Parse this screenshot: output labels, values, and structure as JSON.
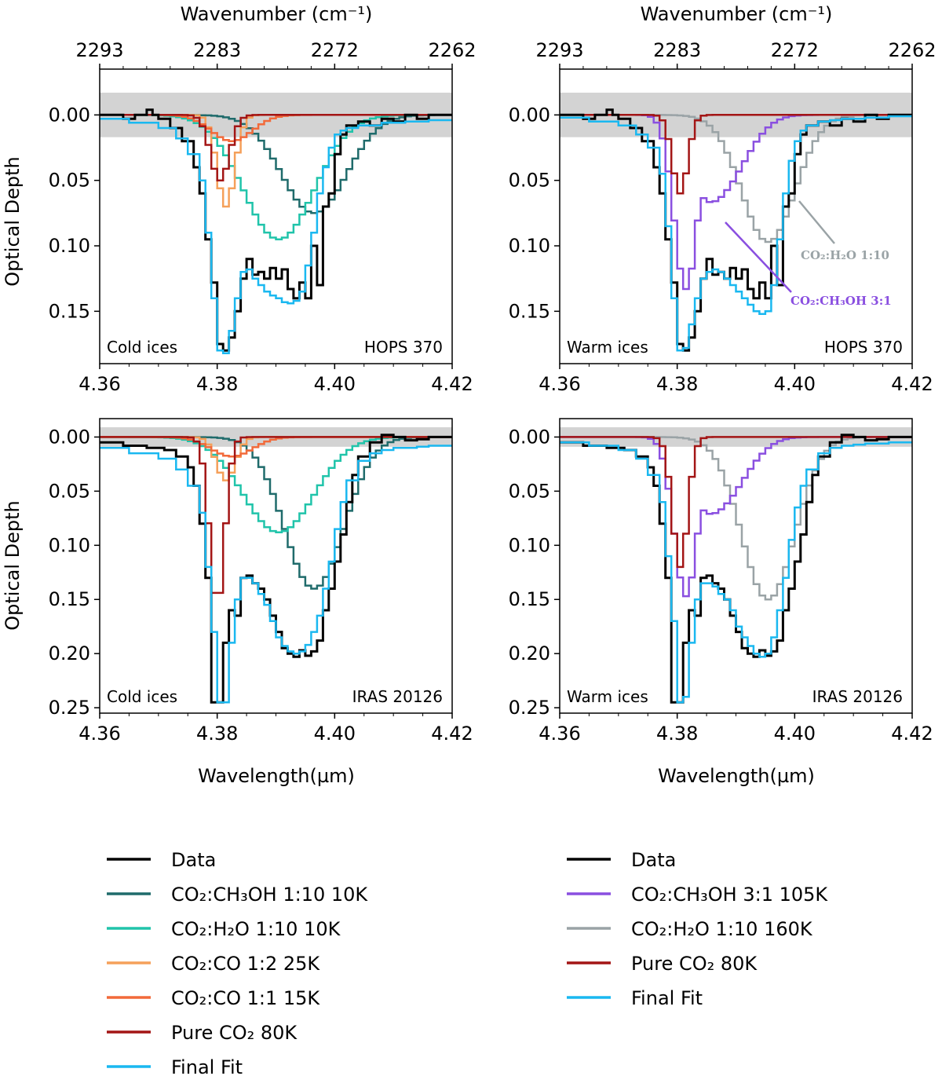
{
  "figure": {
    "top_axis_label": "Wavenumber (cm⁻¹)",
    "y_axis_label": "Optical Depth",
    "x_axis_label": "Wavelength(µm)",
    "top_ticks": [
      "2293",
      "2283",
      "2272",
      "2262"
    ]
  },
  "colors": {
    "data": "#000000",
    "co2_ch3oh_1_10": "#1f6b6b",
    "co2_h2o_1_10_10k": "#20c4aa",
    "co2_co_1_2": "#f5a05a",
    "co2_co_1_1": "#f26a3a",
    "pure_co2": "#a31515",
    "final_fit": "#1ab8f0",
    "co2_ch3oh_3_1": "#8a4fe0",
    "co2_h2o_1_10_160k": "#9aa3a6",
    "noise_band": "#d3d3d3"
  },
  "legend_left": [
    {
      "key": "data",
      "label": "Data"
    },
    {
      "key": "co2_ch3oh_1_10",
      "label": "CO₂:CH₃OH 1:10 10K"
    },
    {
      "key": "co2_h2o_1_10_10k",
      "label": "CO₂:H₂O 1:10 10K"
    },
    {
      "key": "co2_co_1_2",
      "label": "CO₂:CO 1:2 25K"
    },
    {
      "key": "co2_co_1_1",
      "label": "CO₂:CO 1:1 15K"
    },
    {
      "key": "pure_co2",
      "label": "Pure CO₂ 80K"
    },
    {
      "key": "final_fit",
      "label": "Final Fit"
    }
  ],
  "legend_right": [
    {
      "key": "data",
      "label": "Data"
    },
    {
      "key": "co2_ch3oh_3_1",
      "label": "CO₂:CH₃OH 3:1 105K"
    },
    {
      "key": "co2_h2o_1_10_160k",
      "label": "CO₂:H₂O 1:10 160K"
    },
    {
      "key": "pure_co2",
      "label": "Pure CO₂ 80K"
    },
    {
      "key": "final_fit",
      "label": "Final Fit"
    }
  ],
  "annotations": {
    "h2o": "CO₂:H₂O 1:10",
    "ch3oh": "CO₂:CH₃OH 3:1"
  },
  "chart_data": [
    {
      "type": "line",
      "id": "p1",
      "ice_label": "Cold ices",
      "source_label": "HOPS 370",
      "xlim": [
        4.36,
        4.42
      ],
      "ylim": [
        0.19,
        -0.035
      ],
      "xticks": [
        4.36,
        4.38,
        4.4,
        4.42
      ],
      "yticks": [
        0.0,
        0.05,
        0.1,
        0.15
      ],
      "ytick_labels": [
        "0.00",
        "0.05",
        "0.10",
        "0.15"
      ],
      "noise_band": [
        -0.017,
        0.017
      ],
      "data": {
        "x": [
          4.36,
          4.364,
          4.366,
          4.368,
          4.369,
          4.37,
          4.372,
          4.374,
          4.376,
          4.377,
          4.378,
          4.379,
          4.38,
          4.381,
          4.382,
          4.383,
          4.384,
          4.385,
          4.386,
          4.387,
          4.388,
          4.389,
          4.39,
          4.391,
          4.392,
          4.393,
          4.394,
          4.395,
          4.396,
          4.397,
          4.398,
          4.399,
          4.4,
          4.401,
          4.402,
          4.404,
          4.406,
          4.408,
          4.41,
          4.412,
          4.414,
          4.416,
          4.42
        ],
        "y": [
          0.0,
          0.003,
          0.0,
          -0.004,
          0.0,
          0.003,
          0.01,
          0.02,
          0.04,
          0.06,
          0.095,
          0.128,
          0.175,
          0.18,
          0.17,
          0.15,
          0.125,
          0.11,
          0.122,
          0.12,
          0.125,
          0.117,
          0.125,
          0.118,
          0.133,
          0.14,
          0.128,
          0.14,
          0.1,
          0.13,
          0.07,
          0.06,
          0.03,
          0.015,
          0.008,
          0.005,
          0.008,
          0.003,
          0.005,
          0.0,
          0.003,
          0.0,
          0.0
        ]
      },
      "series": [
        {
          "key": "co2_ch3oh_1_10",
          "center": 4.396,
          "depth": 0.075,
          "width": 0.0055
        },
        {
          "key": "co2_h2o_1_10_10k",
          "center": 4.39,
          "depth": 0.095,
          "width": 0.006
        },
        {
          "key": "co2_co_1_2",
          "center": 4.381,
          "depth": 0.07,
          "width": 0.0015
        },
        {
          "key": "co2_co_1_1",
          "center": 4.382,
          "depth": 0.02,
          "width": 0.0035
        },
        {
          "key": "pure_co2",
          "center": 4.38,
          "depth": 0.05,
          "width": 0.0016
        }
      ],
      "fit": {
        "x": [
          4.36,
          4.365,
          4.37,
          4.373,
          4.375,
          4.377,
          4.378,
          4.379,
          4.38,
          4.381,
          4.382,
          4.383,
          4.384,
          4.385,
          4.386,
          4.387,
          4.388,
          4.389,
          4.39,
          4.391,
          4.392,
          4.393,
          4.394,
          4.395,
          4.396,
          4.397,
          4.398,
          4.399,
          4.4,
          4.401,
          4.402,
          4.404,
          4.406,
          4.408,
          4.41,
          4.412,
          4.414,
          4.416,
          4.42
        ],
        "y": [
          0.003,
          0.006,
          0.01,
          0.018,
          0.03,
          0.05,
          0.09,
          0.14,
          0.18,
          0.182,
          0.165,
          0.14,
          0.12,
          0.118,
          0.125,
          0.13,
          0.135,
          0.138,
          0.14,
          0.143,
          0.144,
          0.142,
          0.135,
          0.115,
          0.09,
          0.06,
          0.04,
          0.025,
          0.015,
          0.012,
          0.01,
          0.008,
          0.008,
          0.006,
          0.006,
          0.005,
          0.005,
          0.004,
          0.004
        ]
      }
    },
    {
      "type": "line",
      "id": "p2",
      "ice_label": "Warm ices",
      "source_label": "HOPS 370",
      "xlim": [
        4.36,
        4.42
      ],
      "ylim": [
        0.19,
        -0.035
      ],
      "xticks": [
        4.36,
        4.38,
        4.4,
        4.42
      ],
      "yticks": [
        0.0,
        0.05,
        0.1,
        0.15
      ],
      "ytick_labels": [
        "0.00",
        "0.05",
        "0.10",
        "0.15"
      ],
      "noise_band": [
        -0.017,
        0.017
      ],
      "data": {
        "x": [
          4.36,
          4.364,
          4.366,
          4.368,
          4.369,
          4.37,
          4.372,
          4.374,
          4.376,
          4.377,
          4.378,
          4.379,
          4.38,
          4.381,
          4.382,
          4.383,
          4.384,
          4.385,
          4.386,
          4.387,
          4.388,
          4.389,
          4.39,
          4.391,
          4.392,
          4.393,
          4.394,
          4.395,
          4.396,
          4.397,
          4.398,
          4.399,
          4.4,
          4.401,
          4.402,
          4.404,
          4.406,
          4.408,
          4.41,
          4.412,
          4.414,
          4.416,
          4.42
        ],
        "y": [
          0.0,
          0.003,
          0.0,
          -0.004,
          0.0,
          0.003,
          0.01,
          0.02,
          0.04,
          0.06,
          0.095,
          0.128,
          0.175,
          0.18,
          0.17,
          0.15,
          0.125,
          0.11,
          0.122,
          0.12,
          0.125,
          0.117,
          0.125,
          0.118,
          0.133,
          0.14,
          0.128,
          0.14,
          0.1,
          0.13,
          0.07,
          0.06,
          0.03,
          0.015,
          0.008,
          0.005,
          0.008,
          0.003,
          0.005,
          0.0,
          0.003,
          0.0,
          0.0
        ]
      },
      "series": [
        {
          "key": "co2_h2o_1_10_160k",
          "center": 4.395,
          "depth": 0.097,
          "width": 0.0045
        },
        {
          "key": "co2_ch3oh_3_1",
          "center": 4.381,
          "depth": 0.133,
          "width": 0.002,
          "tail": 0.075,
          "tail_width": 0.011
        },
        {
          "key": "pure_co2",
          "center": 4.38,
          "depth": 0.06,
          "width": 0.0013
        }
      ],
      "fit": {
        "x": [
          4.36,
          4.365,
          4.37,
          4.373,
          4.375,
          4.377,
          4.378,
          4.379,
          4.38,
          4.381,
          4.382,
          4.383,
          4.384,
          4.385,
          4.386,
          4.387,
          4.388,
          4.389,
          4.39,
          4.391,
          4.392,
          4.393,
          4.394,
          4.395,
          4.396,
          4.397,
          4.398,
          4.399,
          4.4,
          4.401,
          4.402,
          4.404,
          4.406,
          4.408,
          4.41,
          4.412,
          4.414,
          4.416,
          4.42
        ],
        "y": [
          0.002,
          0.005,
          0.008,
          0.015,
          0.025,
          0.045,
          0.085,
          0.14,
          0.18,
          0.178,
          0.16,
          0.14,
          0.125,
          0.12,
          0.118,
          0.12,
          0.125,
          0.13,
          0.135,
          0.14,
          0.145,
          0.15,
          0.152,
          0.15,
          0.13,
          0.095,
          0.06,
          0.035,
          0.02,
          0.012,
          0.008,
          0.005,
          0.004,
          0.003,
          0.003,
          0.002,
          0.002,
          0.001,
          0.0
        ]
      }
    },
    {
      "type": "line",
      "id": "p3",
      "ice_label": "Cold ices",
      "source_label": "IRAS 20126",
      "xlim": [
        4.36,
        4.42
      ],
      "ylim": [
        0.255,
        -0.017
      ],
      "xticks": [
        4.36,
        4.38,
        4.4,
        4.42
      ],
      "yticks": [
        0.0,
        0.05,
        0.1,
        0.15,
        0.2,
        0.25
      ],
      "ytick_labels": [
        "0.00",
        "0.05",
        "0.10",
        "0.15",
        "0.20",
        "0.25"
      ],
      "noise_band": [
        -0.009,
        0.009
      ],
      "data": {
        "x": [
          4.36,
          4.364,
          4.368,
          4.371,
          4.373,
          4.375,
          4.376,
          4.377,
          4.378,
          4.379,
          4.38,
          4.381,
          4.382,
          4.383,
          4.384,
          4.385,
          4.386,
          4.387,
          4.388,
          4.389,
          4.39,
          4.391,
          4.392,
          4.393,
          4.394,
          4.395,
          4.396,
          4.397,
          4.398,
          4.399,
          4.4,
          4.401,
          4.402,
          4.403,
          4.404,
          4.406,
          4.408,
          4.41,
          4.412,
          4.414,
          4.416,
          4.42
        ],
        "y": [
          0.005,
          0.008,
          0.01,
          0.012,
          0.018,
          0.028,
          0.045,
          0.08,
          0.13,
          0.245,
          0.245,
          0.19,
          0.16,
          0.165,
          0.13,
          0.128,
          0.135,
          0.14,
          0.15,
          0.165,
          0.18,
          0.195,
          0.2,
          0.203,
          0.197,
          0.202,
          0.198,
          0.188,
          0.16,
          0.14,
          0.115,
          0.09,
          0.06,
          0.035,
          0.018,
          0.005,
          -0.002,
          0.0,
          0.003,
          0.002,
          0.0,
          0.0
        ]
      },
      "series": [
        {
          "key": "co2_ch3oh_1_10",
          "center": 4.396,
          "depth": 0.14,
          "width": 0.005
        },
        {
          "key": "co2_h2o_1_10_10k",
          "center": 4.39,
          "depth": 0.088,
          "width": 0.006
        },
        {
          "key": "co2_co_1_2",
          "center": 4.381,
          "depth": 0.04,
          "width": 0.0016
        },
        {
          "key": "co2_co_1_1",
          "center": 4.382,
          "depth": 0.018,
          "width": 0.0035
        },
        {
          "key": "pure_co2",
          "center": 4.3795,
          "depth": 0.155,
          "width": 0.0013
        }
      ],
      "fit": {
        "x": [
          4.36,
          4.365,
          4.37,
          4.373,
          4.375,
          4.377,
          4.378,
          4.379,
          4.38,
          4.381,
          4.382,
          4.383,
          4.384,
          4.385,
          4.386,
          4.387,
          4.388,
          4.389,
          4.39,
          4.391,
          4.392,
          4.393,
          4.394,
          4.395,
          4.396,
          4.397,
          4.398,
          4.399,
          4.4,
          4.401,
          4.402,
          4.404,
          4.406,
          4.408,
          4.41,
          4.412,
          4.414,
          4.416,
          4.42
        ],
        "y": [
          0.01,
          0.015,
          0.02,
          0.03,
          0.045,
          0.07,
          0.12,
          0.18,
          0.245,
          0.245,
          0.19,
          0.15,
          0.13,
          0.13,
          0.135,
          0.145,
          0.155,
          0.17,
          0.185,
          0.193,
          0.198,
          0.2,
          0.198,
          0.192,
          0.18,
          0.165,
          0.14,
          0.115,
          0.085,
          0.06,
          0.04,
          0.022,
          0.015,
          0.012,
          0.01,
          0.01,
          0.009,
          0.008,
          0.008
        ]
      }
    },
    {
      "type": "line",
      "id": "p4",
      "ice_label": "Warm ices",
      "source_label": "IRAS 20126",
      "xlim": [
        4.36,
        4.42
      ],
      "ylim": [
        0.255,
        -0.017
      ],
      "xticks": [
        4.36,
        4.38,
        4.4,
        4.42
      ],
      "yticks": [
        0.0,
        0.05,
        0.1,
        0.15,
        0.2,
        0.25
      ],
      "ytick_labels": [
        "0.00",
        "0.05",
        "0.10",
        "0.15",
        "0.20",
        "0.25"
      ],
      "noise_band": [
        -0.009,
        0.009
      ],
      "data": {
        "x": [
          4.36,
          4.364,
          4.368,
          4.371,
          4.373,
          4.375,
          4.376,
          4.377,
          4.378,
          4.379,
          4.38,
          4.381,
          4.382,
          4.383,
          4.384,
          4.385,
          4.386,
          4.387,
          4.388,
          4.389,
          4.39,
          4.391,
          4.392,
          4.393,
          4.394,
          4.395,
          4.396,
          4.397,
          4.398,
          4.399,
          4.4,
          4.401,
          4.402,
          4.403,
          4.404,
          4.406,
          4.408,
          4.41,
          4.412,
          4.414,
          4.416,
          4.42
        ],
        "y": [
          0.005,
          0.008,
          0.01,
          0.012,
          0.018,
          0.028,
          0.045,
          0.08,
          0.13,
          0.245,
          0.245,
          0.19,
          0.16,
          0.165,
          0.13,
          0.128,
          0.135,
          0.14,
          0.15,
          0.165,
          0.18,
          0.195,
          0.2,
          0.203,
          0.197,
          0.202,
          0.198,
          0.188,
          0.16,
          0.14,
          0.115,
          0.09,
          0.06,
          0.035,
          0.018,
          0.005,
          -0.002,
          0.0,
          0.003,
          0.002,
          0.0,
          0.0
        ]
      },
      "series": [
        {
          "key": "co2_h2o_1_10_160k",
          "center": 4.395,
          "depth": 0.15,
          "width": 0.0045
        },
        {
          "key": "co2_ch3oh_3_1",
          "center": 4.381,
          "depth": 0.147,
          "width": 0.002,
          "tail": 0.08,
          "tail_width": 0.011
        },
        {
          "key": "pure_co2",
          "center": 4.38,
          "depth": 0.12,
          "width": 0.0013
        }
      ],
      "fit": {
        "x": [
          4.36,
          4.365,
          4.37,
          4.373,
          4.375,
          4.377,
          4.378,
          4.379,
          4.38,
          4.381,
          4.382,
          4.383,
          4.384,
          4.385,
          4.386,
          4.387,
          4.388,
          4.389,
          4.39,
          4.391,
          4.392,
          4.393,
          4.394,
          4.395,
          4.396,
          4.397,
          4.398,
          4.399,
          4.4,
          4.401,
          4.402,
          4.404,
          4.406,
          4.408,
          4.41,
          4.412,
          4.414,
          4.416,
          4.42
        ],
        "y": [
          0.005,
          0.008,
          0.012,
          0.02,
          0.035,
          0.06,
          0.11,
          0.17,
          0.245,
          0.24,
          0.19,
          0.15,
          0.135,
          0.135,
          0.138,
          0.145,
          0.15,
          0.16,
          0.175,
          0.185,
          0.193,
          0.2,
          0.203,
          0.2,
          0.185,
          0.16,
          0.13,
          0.095,
          0.065,
          0.045,
          0.03,
          0.015,
          0.01,
          0.008,
          0.007,
          0.006,
          0.006,
          0.005,
          0.004
        ]
      }
    }
  ]
}
